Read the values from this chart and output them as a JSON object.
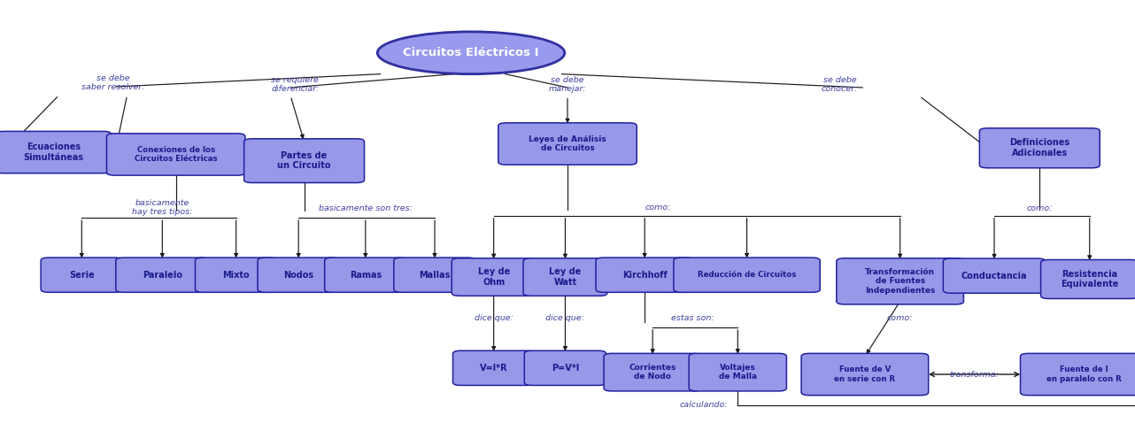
{
  "bg_color": "#ffffff",
  "box_face": "#9898e8",
  "box_edge": "#2020a0",
  "text_color": "#1a1a8c",
  "label_color": "#4040a0",
  "arrow_color": "#1a1a1a",
  "ellipse_face": "#8888dd",
  "ellipse_edge": "#1a1a8c",
  "nodes": {
    "root": [
      0.415,
      0.875,
      0.165,
      0.1
    ],
    "ec_sim": [
      0.047,
      0.64,
      0.088,
      0.085
    ],
    "con_circ": [
      0.155,
      0.635,
      0.108,
      0.085
    ],
    "partes": [
      0.268,
      0.62,
      0.092,
      0.09
    ],
    "leyes": [
      0.5,
      0.66,
      0.108,
      0.085
    ],
    "def_adic": [
      0.916,
      0.65,
      0.092,
      0.08
    ],
    "serie": [
      0.072,
      0.35,
      0.058,
      0.068
    ],
    "paralelo": [
      0.143,
      0.35,
      0.068,
      0.068
    ],
    "mixto": [
      0.208,
      0.35,
      0.058,
      0.068
    ],
    "nodos": [
      0.263,
      0.35,
      0.058,
      0.068
    ],
    "ramas": [
      0.322,
      0.35,
      0.058,
      0.068
    ],
    "mallas": [
      0.383,
      0.35,
      0.058,
      0.068
    ],
    "ley_ohm": [
      0.435,
      0.345,
      0.06,
      0.075
    ],
    "ley_watt": [
      0.498,
      0.345,
      0.06,
      0.075
    ],
    "kirchhoff": [
      0.568,
      0.35,
      0.072,
      0.068
    ],
    "reduccion": [
      0.658,
      0.35,
      0.115,
      0.068
    ],
    "transf": [
      0.793,
      0.335,
      0.098,
      0.095
    ],
    "cond": [
      0.876,
      0.348,
      0.076,
      0.068
    ],
    "res_eq": [
      0.96,
      0.34,
      0.072,
      0.078
    ],
    "v_ir": [
      0.435,
      0.13,
      0.058,
      0.068
    ],
    "p_vi": [
      0.498,
      0.13,
      0.058,
      0.068
    ],
    "corr_nodo": [
      0.575,
      0.12,
      0.072,
      0.075
    ],
    "volt_malla": [
      0.65,
      0.12,
      0.072,
      0.075
    ],
    "fuente_v": [
      0.762,
      0.115,
      0.098,
      0.085
    ],
    "fuente_i": [
      0.955,
      0.115,
      0.098,
      0.085
    ]
  },
  "labels": {
    "root": "Circuitos Eléctricos I",
    "ec_sim": "Ecuaciones\nSimultáneas",
    "con_circ": "Conexiones de los\nCircuitos Eléctricas",
    "partes": "Partes de\nun Circuito",
    "leyes": "Leyes de Análisis\nde Circuitos",
    "def_adic": "Definiciones\nAdicionales",
    "serie": "Serie",
    "paralelo": "Paralelo",
    "mixto": "Mixto",
    "nodos": "Nodos",
    "ramas": "Ramas",
    "mallas": "Mallas",
    "ley_ohm": "Ley de\nOhm",
    "ley_watt": "Ley de\nWatt",
    "kirchhoff": "Kirchhoff",
    "reduccion": "Reducción de Circuitos",
    "transf": "Transformación\nde Fuentes\nIndependientes",
    "cond": "Conductancia",
    "res_eq": "Resistencia\nEquivalente",
    "v_ir": "V=I*R",
    "p_vi": "P=V*I",
    "corr_nodo": "Corrientes\nde Nodo",
    "volt_malla": "Voltajes\nde Malla",
    "fuente_v": "Fuente de V\nen serie con R",
    "fuente_i": "Fuente de I\nen paralelo con R"
  },
  "link_labels": {
    "l1": [
      0.1,
      0.805,
      "se debe\nsaber resolver:"
    ],
    "l2": [
      0.26,
      0.8,
      "se requiere\ndiferenciar:"
    ],
    "l3": [
      0.5,
      0.8,
      "se debe\nmanejar:"
    ],
    "l4": [
      0.74,
      0.8,
      "se debe\nconocer:"
    ],
    "l5": [
      0.143,
      0.51,
      "basicamente\nhay tres tipos:"
    ],
    "l6": [
      0.322,
      0.508,
      "basicamente son tres:"
    ],
    "l7": [
      0.58,
      0.51,
      "como:"
    ],
    "l8": [
      0.916,
      0.508,
      "como:"
    ],
    "l9": [
      0.435,
      0.248,
      "dice que:"
    ],
    "l10": [
      0.498,
      0.248,
      "dice que:"
    ],
    "l11": [
      0.61,
      0.248,
      "estas son:"
    ],
    "l12": [
      0.793,
      0.248,
      "como:"
    ],
    "l13": [
      0.858,
      0.115,
      "transforma:"
    ],
    "l14": [
      0.62,
      0.042,
      "calculando:"
    ]
  }
}
